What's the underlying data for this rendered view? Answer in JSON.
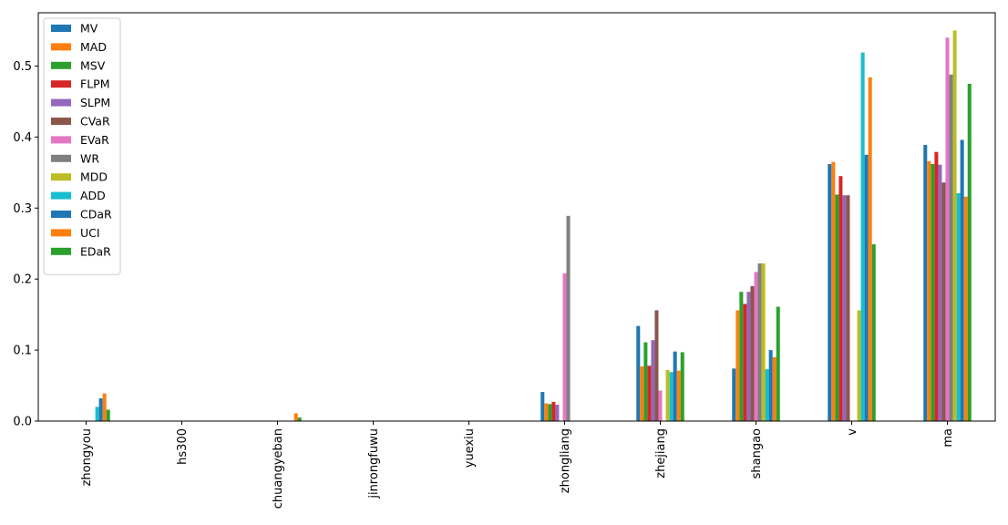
{
  "chart_data": {
    "type": "bar",
    "categories": [
      "zhongyou",
      "hs300",
      "chuangyeban",
      "jinrongfuwu",
      "yuexiu",
      "zhongliang",
      "zhejiang",
      "shangao",
      "v",
      "ma"
    ],
    "ylim": [
      0,
      0.575
    ],
    "yticks": [
      0.0,
      0.1,
      0.2,
      0.3,
      0.4,
      0.5
    ],
    "ytick_labels": [
      "0.0",
      "0.1",
      "0.2",
      "0.3",
      "0.4",
      "0.5"
    ],
    "legend_position": "upper-left",
    "grid": false,
    "series": [
      {
        "name": "MV",
        "color": "#1f77b4",
        "values": [
          0.0,
          0.0,
          0.0,
          0.0,
          0.0,
          0.041,
          0.134,
          0.074,
          0.362,
          0.389
        ]
      },
      {
        "name": "MAD",
        "color": "#ff7f0e",
        "values": [
          0.0,
          0.0,
          0.0,
          0.0,
          0.0,
          0.025,
          0.077,
          0.156,
          0.365,
          0.366
        ]
      },
      {
        "name": "MSV",
        "color": "#2ca02c",
        "values": [
          0.0,
          0.0,
          0.0,
          0.0,
          0.0,
          0.024,
          0.111,
          0.182,
          0.319,
          0.362
        ]
      },
      {
        "name": "FLPM",
        "color": "#d62728",
        "values": [
          0.0,
          0.0,
          0.0,
          0.0,
          0.0,
          0.027,
          0.078,
          0.165,
          0.345,
          0.379
        ]
      },
      {
        "name": "SLPM",
        "color": "#9467bd",
        "values": [
          0.0,
          0.0,
          0.0,
          0.0,
          0.0,
          0.023,
          0.114,
          0.182,
          0.318,
          0.361
        ]
      },
      {
        "name": "CVaR",
        "color": "#8c564b",
        "values": [
          0.0,
          0.0,
          0.0,
          0.0,
          0.0,
          0.0,
          0.156,
          0.19,
          0.318,
          0.336
        ]
      },
      {
        "name": "EVaR",
        "color": "#e377c2",
        "values": [
          0.0,
          0.0,
          0.0,
          0.0,
          0.0,
          0.208,
          0.043,
          0.21,
          0.0,
          0.54
        ]
      },
      {
        "name": "WR",
        "color": "#7f7f7f",
        "values": [
          0.0,
          0.0,
          0.0,
          0.0,
          0.0,
          0.289,
          0.0,
          0.222,
          0.0,
          0.488
        ]
      },
      {
        "name": "MDD",
        "color": "#bcbd22",
        "values": [
          0.0,
          0.0,
          0.0,
          0.0,
          0.0,
          0.0,
          0.072,
          0.222,
          0.156,
          0.55
        ]
      },
      {
        "name": "ADD",
        "color": "#17becf",
        "values": [
          0.02,
          0.0,
          0.0,
          0.0,
          0.0,
          0.0,
          0.069,
          0.073,
          0.519,
          0.321
        ]
      },
      {
        "name": "CDaR",
        "color": "#1f77b4",
        "values": [
          0.032,
          0.0,
          0.0,
          0.0,
          0.0,
          0.0,
          0.098,
          0.1,
          0.375,
          0.396
        ]
      },
      {
        "name": "UCI",
        "color": "#ff7f0e",
        "values": [
          0.039,
          0.0,
          0.011,
          0.0,
          0.0,
          0.0,
          0.071,
          0.09,
          0.484,
          0.316
        ]
      },
      {
        "name": "EDaR",
        "color": "#2ca02c",
        "values": [
          0.016,
          0.0,
          0.005,
          0.0,
          0.0,
          0.0,
          0.097,
          0.161,
          0.249,
          0.475
        ]
      }
    ]
  }
}
